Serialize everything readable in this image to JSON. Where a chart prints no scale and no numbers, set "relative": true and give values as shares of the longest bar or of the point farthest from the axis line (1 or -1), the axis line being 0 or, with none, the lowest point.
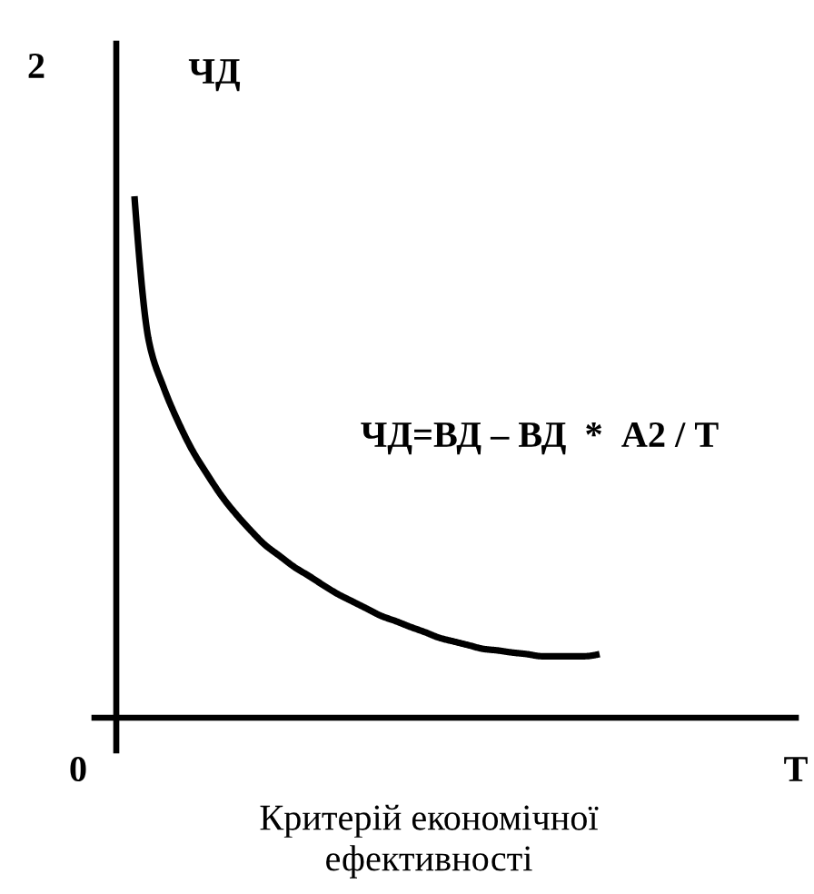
{
  "chart_data": {
    "type": "line",
    "relative": true,
    "line_style": "solid",
    "xlabel": "T",
    "ylabel": "ЧД",
    "annotations": [
      "2",
      "0",
      "ЧД=ВД – ВД  *  А2 / Т",
      "Критерій економічної\nефективності"
    ],
    "categories": [
      null,
      null,
      null,
      null,
      null,
      null,
      null,
      null,
      null,
      null,
      null,
      null,
      null,
      null,
      null,
      null,
      null,
      null,
      null,
      null,
      null,
      null,
      null,
      null,
      null,
      null,
      null,
      null,
      null,
      null,
      null,
      null,
      null
    ],
    "series": [
      {
        "color": "#000000",
        "values": [
          1.0,
          0.721,
          0.634,
          0.568,
          0.512,
          0.467,
          0.425,
          0.39,
          0.359,
          0.331,
          0.31,
          0.289,
          0.272,
          0.254,
          0.237,
          0.223,
          0.209,
          0.195,
          0.185,
          0.174,
          0.164,
          0.153,
          0.146,
          0.139,
          0.132,
          0.129,
          0.125,
          0.122,
          0.118,
          0.118,
          0.118,
          0.118,
          0.122
        ]
      }
    ]
  }
}
